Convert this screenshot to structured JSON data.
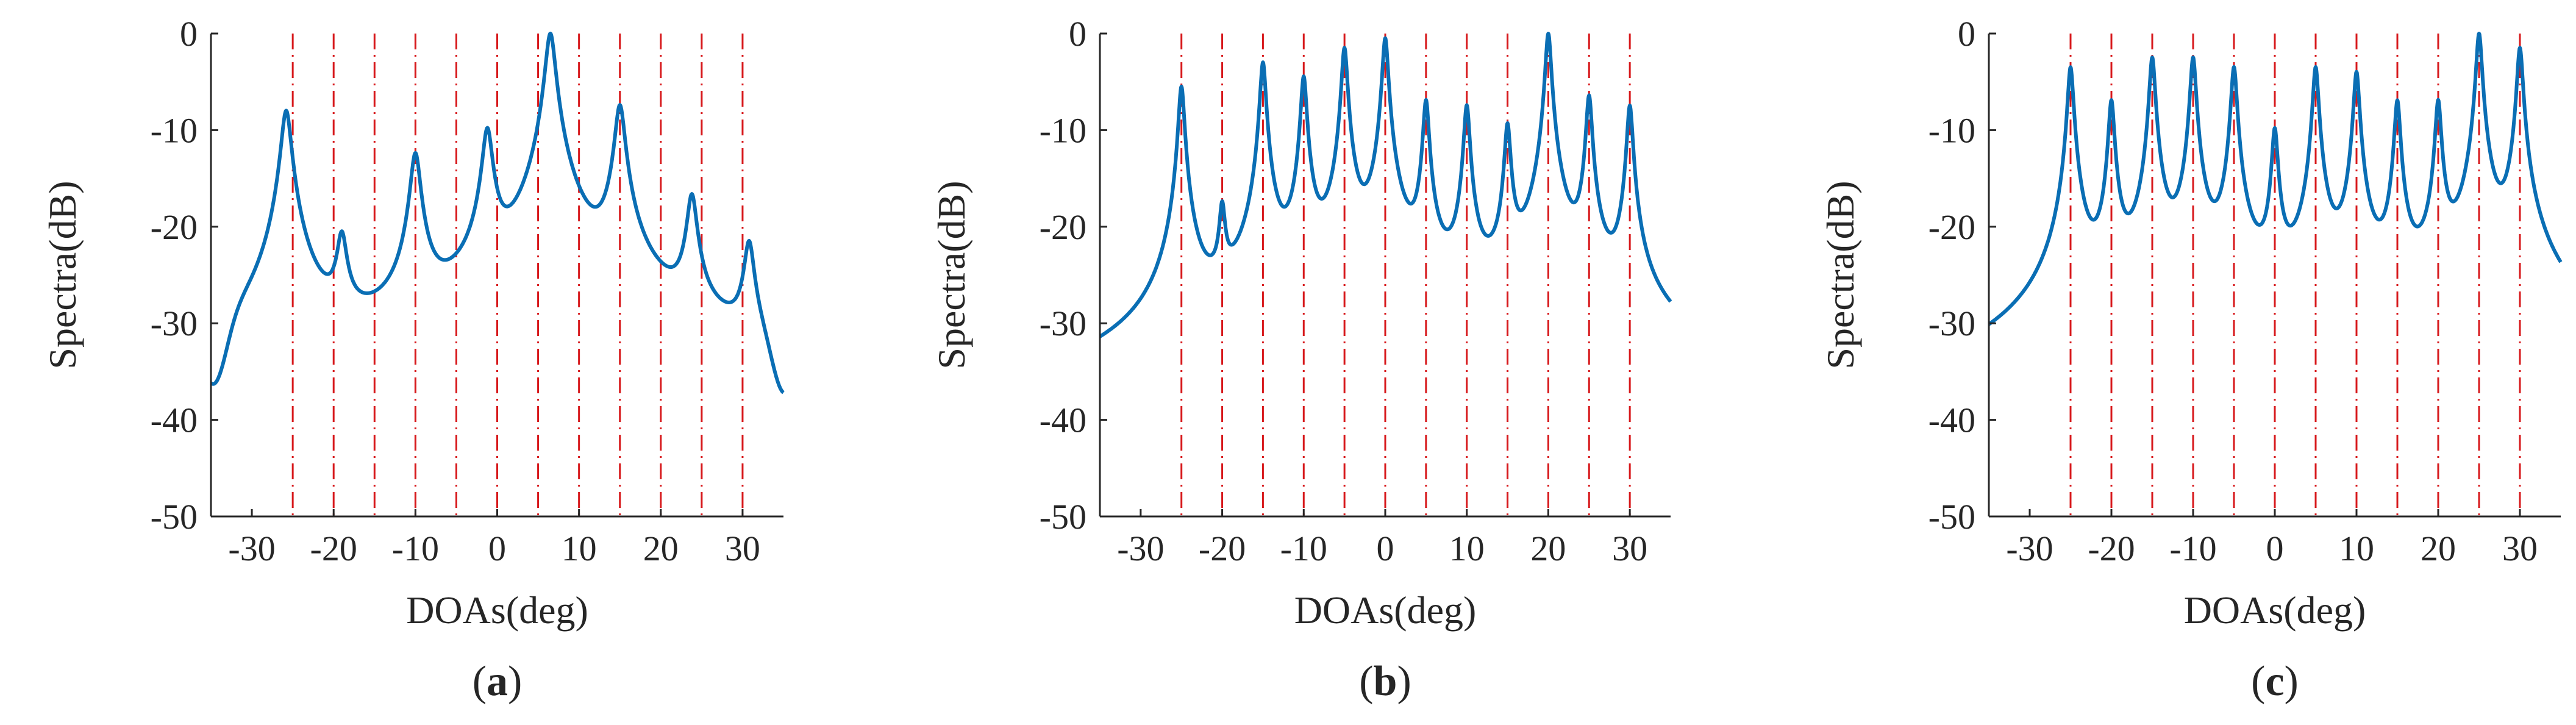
{
  "chart_data": [
    {
      "type": "line",
      "caption_letter": "a",
      "xlabel": "DOAs(deg)",
      "ylabel": "Spectra(dB)",
      "xlim": [
        -35,
        35
      ],
      "ylim": [
        -50,
        0
      ],
      "xticks": [
        -30,
        -20,
        -10,
        0,
        10,
        20,
        30
      ],
      "yticks": [
        0,
        -10,
        -20,
        -30,
        -40,
        -50
      ],
      "true_doas": [
        -25,
        -20,
        -15,
        -10,
        -5,
        0,
        5,
        10,
        15,
        20,
        25,
        30
      ],
      "baseline_model": "lorentzian",
      "floor_db": -44,
      "peaks": [
        {
          "doa": -25.8,
          "db": -8
        },
        {
          "doa": -19,
          "db": -21.5
        },
        {
          "doa": -10,
          "db": -12.5
        },
        {
          "doa": -1.2,
          "db": -10
        },
        {
          "doa": 6.5,
          "db": 0
        },
        {
          "doa": 15,
          "db": -7.5
        },
        {
          "doa": 23.8,
          "db": -17
        },
        {
          "doa": 30.8,
          "db": -22
        }
      ]
    },
    {
      "type": "line",
      "caption_letter": "b",
      "xlabel": "DOAs(deg)",
      "ylabel": "Spectra(dB)",
      "xlim": [
        -35,
        35
      ],
      "ylim": [
        -50,
        0
      ],
      "xticks": [
        -30,
        -20,
        -10,
        0,
        10,
        20,
        30
      ],
      "yticks": [
        0,
        -10,
        -20,
        -30,
        -40,
        -50
      ],
      "true_doas": [
        -25,
        -20,
        -15,
        -10,
        -5,
        0,
        5,
        10,
        15,
        20,
        25,
        30
      ],
      "baseline_model": "sharp",
      "floor_db": -46.5,
      "peaks": [
        {
          "doa": -25,
          "db": -5.5
        },
        {
          "doa": -20,
          "db": -18.5
        },
        {
          "doa": -15,
          "db": -3
        },
        {
          "doa": -10,
          "db": -4.5
        },
        {
          "doa": -5,
          "db": -1.5
        },
        {
          "doa": 0,
          "db": -0.5
        },
        {
          "doa": 5,
          "db": -7
        },
        {
          "doa": 10,
          "db": -7.5
        },
        {
          "doa": 15,
          "db": -9.5
        },
        {
          "doa": 20,
          "db": 0
        },
        {
          "doa": 25,
          "db": -6.5
        },
        {
          "doa": 30,
          "db": -7.5
        }
      ]
    },
    {
      "type": "line",
      "caption_letter": "c",
      "xlabel": "DOAs(deg)",
      "ylabel": "Spectra(dB)",
      "xlim": [
        -35,
        35
      ],
      "ylim": [
        -50,
        0
      ],
      "xticks": [
        -30,
        -20,
        -10,
        0,
        10,
        20,
        30
      ],
      "yticks": [
        0,
        -10,
        -20,
        -30,
        -40,
        -50
      ],
      "true_doas": [
        -25,
        -20,
        -15,
        -10,
        -5,
        0,
        5,
        10,
        15,
        20,
        25,
        30
      ],
      "baseline_model": "sharp",
      "floor_db": -46,
      "peaks": [
        {
          "doa": -25,
          "db": -3.5
        },
        {
          "doa": -20,
          "db": -7
        },
        {
          "doa": -15,
          "db": -2.5
        },
        {
          "doa": -10,
          "db": -2.5
        },
        {
          "doa": -5,
          "db": -3.5
        },
        {
          "doa": 0,
          "db": -10
        },
        {
          "doa": 5,
          "db": -3.5
        },
        {
          "doa": 10,
          "db": -4
        },
        {
          "doa": 15,
          "db": -7
        },
        {
          "doa": 20,
          "db": -7
        },
        {
          "doa": 25,
          "db": 0
        },
        {
          "doa": 30,
          "db": -1.5
        }
      ]
    }
  ],
  "colors": {
    "spectrum": "#0a6eb4",
    "true_doa_line": "#d7191c",
    "axis": "#262626"
  }
}
